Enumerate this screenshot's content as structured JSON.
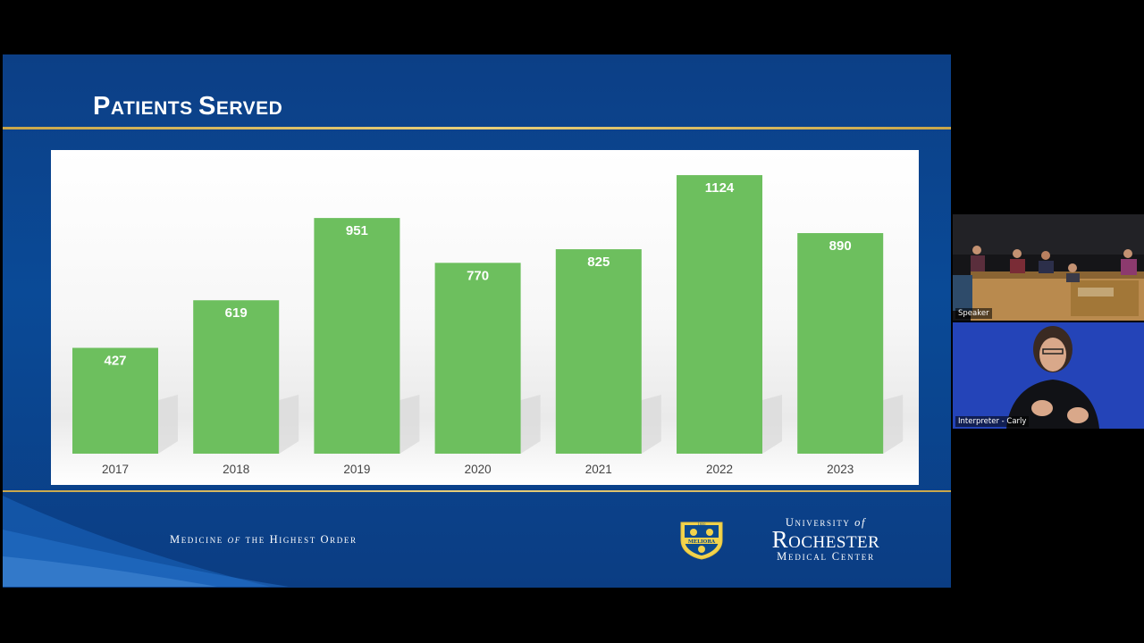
{
  "slide": {
    "title_first_letter": "P",
    "title_rest_1": "ATIENTS ",
    "title_second_letter": "S",
    "title_rest_2": "ERVED",
    "tagline_1": "Medicine",
    "tagline_of": "of",
    "tagline_2": "the Highest Order",
    "logo_line1_a": "University",
    "logo_line1_of": "of",
    "logo_line2": "Rochester",
    "logo_line3": "Medical Center",
    "seal_text": "MELIORA",
    "seal_year": "1850",
    "colors": {
      "background": "#0a4a97",
      "bar": "#6dbf5e",
      "accent_rule": "#d9bb5c"
    }
  },
  "chart_data": {
    "type": "bar",
    "categories": [
      "2017",
      "2018",
      "2019",
      "2020",
      "2021",
      "2022",
      "2023"
    ],
    "values": [
      427,
      619,
      951,
      770,
      825,
      1124,
      890
    ],
    "title": "Patients Served",
    "xlabel": "",
    "ylabel": "",
    "ylim": [
      0,
      1200
    ],
    "grid": false,
    "legend": "none"
  },
  "video": {
    "tiles": [
      {
        "label": "Speaker",
        "icon": "video-feed-icon"
      },
      {
        "label": "Interpreter - Carly",
        "icon": "video-feed-icon"
      }
    ]
  }
}
